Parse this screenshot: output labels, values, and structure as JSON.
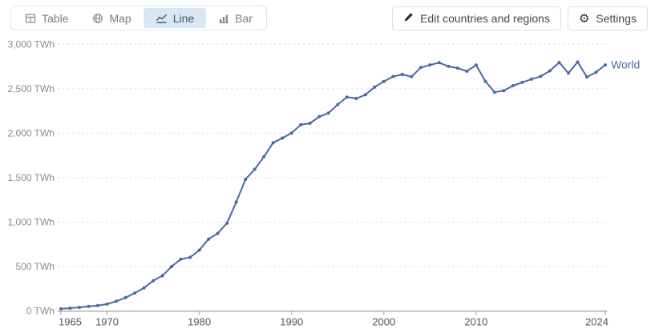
{
  "toolbar": {
    "tabs": [
      {
        "label": "Table",
        "icon": "table-icon",
        "active": false
      },
      {
        "label": "Map",
        "icon": "globe-icon",
        "active": false
      },
      {
        "label": "Line",
        "icon": "line-chart-icon",
        "active": true
      },
      {
        "label": "Bar",
        "icon": "bar-chart-icon",
        "active": false
      }
    ],
    "edit_button": {
      "label": "Edit countries and regions",
      "icon": "pencil-icon"
    },
    "settings_button": {
      "label": "Settings",
      "icon": "gear-icon"
    }
  },
  "colors": {
    "line": "#4c699e",
    "series_label": "#4e6da6",
    "active_tab_bg": "#d9e6f3",
    "active_tab_text": "#3d5670",
    "grid": "#dcdcdc",
    "axis": "#9e9e9e",
    "y_tick_label": "#8a8a8a",
    "x_tick_label": "#565656"
  },
  "chart_data": {
    "type": "line",
    "title": "",
    "xlabel": "",
    "ylabel": "",
    "unit": "TWh",
    "xlim": [
      1965,
      2024
    ],
    "ylim": [
      0,
      3000
    ],
    "grid": "horizontal-dashed",
    "legend": "end-of-line-label",
    "x": [
      1965,
      1966,
      1967,
      1968,
      1969,
      1970,
      1971,
      1972,
      1973,
      1974,
      1975,
      1976,
      1977,
      1978,
      1979,
      1980,
      1981,
      1982,
      1983,
      1984,
      1985,
      1986,
      1987,
      1988,
      1989,
      1990,
      1991,
      1992,
      1993,
      1994,
      1995,
      1996,
      1997,
      1998,
      1999,
      2000,
      2001,
      2002,
      2003,
      2004,
      2005,
      2006,
      2007,
      2008,
      2009,
      2010,
      2011,
      2012,
      2013,
      2014,
      2015,
      2016,
      2017,
      2018,
      2019,
      2020,
      2021,
      2022,
      2023,
      2024
    ],
    "series": [
      {
        "name": "World",
        "color": "#4c699e",
        "values": [
          25.3,
          32.5,
          41.8,
          52.8,
          62.0,
          78.6,
          110.6,
          151.6,
          202.8,
          261.3,
          341.5,
          397.5,
          501.5,
          584.2,
          603.9,
          684.4,
          809.4,
          874.0,
          989.4,
          1225.5,
          1480.7,
          1594.4,
          1735.8,
          1893.1,
          1945.0,
          2000.5,
          2096.3,
          2111.6,
          2185.5,
          2225.5,
          2322.4,
          2406.6,
          2390.7,
          2431.8,
          2518.1,
          2582.1,
          2637.7,
          2660.8,
          2635.3,
          2738.5,
          2767.9,
          2793.4,
          2751.2,
          2731.4,
          2696.8,
          2767.2,
          2584.6,
          2461.0,
          2478.8,
          2535.1,
          2571.4,
          2608.0,
          2639.3,
          2701.4,
          2796.0,
          2674.8,
          2800.3,
          2632.2,
          2686.1,
          2768.0
        ]
      }
    ],
    "x_ticks": [
      {
        "value": 1965,
        "label": "1965"
      },
      {
        "value": 1970,
        "label": "1970"
      },
      {
        "value": 1980,
        "label": "1980"
      },
      {
        "value": 1990,
        "label": "1990"
      },
      {
        "value": 2000,
        "label": "2000"
      },
      {
        "value": 2010,
        "label": "2010"
      },
      {
        "value": 2024,
        "label": "2024"
      }
    ],
    "y_ticks": [
      {
        "value": 0,
        "label": "0 TWh"
      },
      {
        "value": 500,
        "label": "500 TWh"
      },
      {
        "value": 1000,
        "label": "1,000 TWh"
      },
      {
        "value": 1500,
        "label": "1,500 TWh"
      },
      {
        "value": 2000,
        "label": "2,000 TWh"
      },
      {
        "value": 2500,
        "label": "2,500 TWh"
      },
      {
        "value": 3000,
        "label": "3,000 TWh"
      }
    ]
  }
}
